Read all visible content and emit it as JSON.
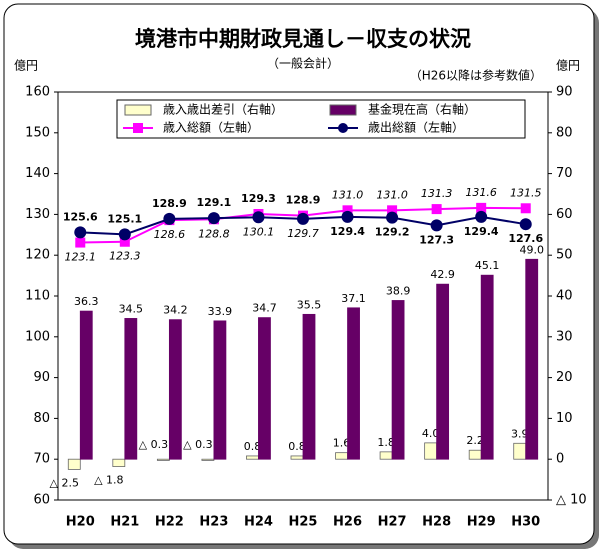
{
  "chart_data": {
    "type": "combo",
    "title": "境港市中期財政見通し－収支の状況",
    "subtitle": "（一般会計）",
    "note": "（H26以降は参考数値）",
    "ylabel": "億円",
    "y2label": "億円",
    "categories": [
      "H20",
      "H21",
      "H22",
      "H23",
      "H24",
      "H25",
      "H26",
      "H27",
      "H28",
      "H29",
      "H30"
    ],
    "ylim": [
      60,
      160
    ],
    "yticks": [
      60,
      70,
      80,
      90,
      100,
      110,
      120,
      130,
      140,
      150,
      160
    ],
    "y2lim": [
      -10,
      90
    ],
    "y2ticks": [
      {
        "value": -10,
        "label": "△ 10"
      },
      0,
      10,
      20,
      30,
      40,
      50,
      60,
      70,
      80,
      90
    ],
    "series": [
      {
        "name": "歳入歳出差引（右軸）",
        "type": "bar",
        "axis": "y2",
        "color": "#ffffcc",
        "values": [
          -2.5,
          -1.8,
          -0.3,
          -0.3,
          0.8,
          0.8,
          1.6,
          1.8,
          4.0,
          2.2,
          3.9
        ],
        "value_labels": [
          "△ 2.5",
          "△ 1.8",
          "△ 0.3",
          "△ 0.3",
          "0.8",
          "0.8",
          "1.6",
          "1.8",
          "4.0",
          "2.2",
          "3.9"
        ]
      },
      {
        "name": "基金現在高（右軸）",
        "type": "bar",
        "axis": "y2",
        "color": "#660066",
        "values": [
          36.3,
          34.5,
          34.2,
          33.9,
          34.7,
          35.5,
          37.1,
          38.9,
          42.9,
          45.1,
          49.0
        ],
        "value_labels": [
          "36.3",
          "34.5",
          "34.2",
          "33.9",
          "34.7",
          "35.5",
          "37.1",
          "38.9",
          "42.9",
          "45.1",
          "49.0"
        ]
      },
      {
        "name": "歳入総額（左軸）",
        "type": "line",
        "axis": "y",
        "color": "#ff00ff",
        "marker": "square",
        "values": [
          123.1,
          123.3,
          128.6,
          128.8,
          130.1,
          129.7,
          131.0,
          131.0,
          131.3,
          131.6,
          131.5
        ],
        "value_labels": [
          "123.1",
          "123.3",
          "128.6",
          "128.8",
          "130.1",
          "129.7",
          "131.0",
          "131.0",
          "131.3",
          "131.6",
          "131.5"
        ]
      },
      {
        "name": "歳出総額（左軸）",
        "type": "line",
        "axis": "y",
        "color": "#000066",
        "marker": "circle",
        "values": [
          125.6,
          125.1,
          128.9,
          129.1,
          129.3,
          128.9,
          129.4,
          129.2,
          127.3,
          129.4,
          127.6
        ]
      }
    ]
  }
}
